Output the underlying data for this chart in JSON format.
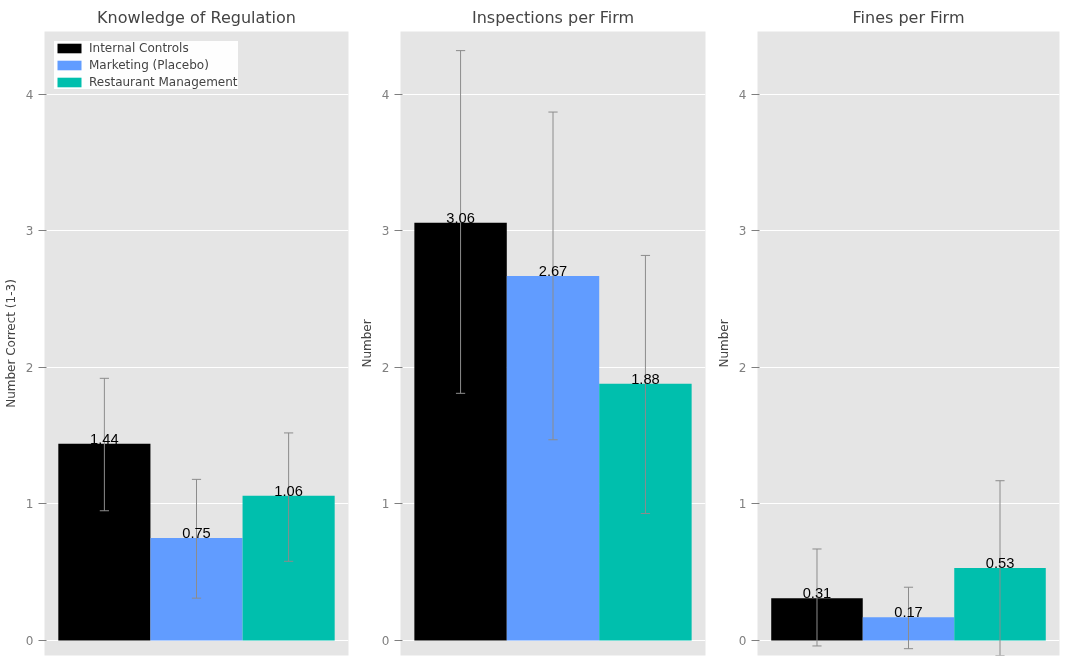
{
  "chart_data": [
    {
      "type": "bar",
      "title": "Knowledge of Regulation",
      "ylabel": "Number Correct (1-3)",
      "categories": [
        null
      ],
      "ylim": [
        -0.11,
        4.46
      ],
      "yticks": [
        0,
        1,
        2,
        3,
        4
      ],
      "grid": "y",
      "legend": "top left",
      "tick_labels": "y",
      "data_labels": true,
      "series": [
        {
          "name": "Internal Controls",
          "color": "#000000",
          "values": [
            1.44
          ],
          "errors": [
            [
              0.95,
              1.92
            ]
          ]
        },
        {
          "name": "Marketing (Placebo)",
          "color": "#619cff",
          "values": [
            0.75
          ],
          "errors": [
            [
              0.31,
              1.18
            ]
          ]
        },
        {
          "name": "Restaurant Management",
          "color": "#00bfad",
          "values": [
            1.06
          ],
          "errors": [
            [
              0.58,
              1.52
            ]
          ]
        }
      ]
    },
    {
      "type": "bar",
      "title": "Inspections per Firm",
      "ylabel": "Number",
      "categories": [
        null
      ],
      "ylim": [
        -0.11,
        4.46
      ],
      "yticks": [
        0,
        1,
        2,
        3,
        4
      ],
      "grid": "y",
      "tick_labels": "y",
      "data_labels": true,
      "series": [
        {
          "color": "#000000",
          "values": [
            3.06
          ],
          "errors": [
            [
              1.81,
              4.32
            ]
          ]
        },
        {
          "color": "#619cff",
          "values": [
            2.67
          ],
          "errors": [
            [
              1.47,
              3.87
            ]
          ]
        },
        {
          "color": "#00bfad",
          "values": [
            1.88
          ],
          "errors": [
            [
              0.93,
              2.82
            ]
          ]
        }
      ]
    },
    {
      "type": "bar",
      "title": "Fines per Firm",
      "ylabel": "Number",
      "categories": [
        null
      ],
      "ylim": [
        -0.11,
        4.46
      ],
      "yticks": [
        0,
        1,
        2,
        3,
        4
      ],
      "grid": "y",
      "tick_labels": "y",
      "data_labels": true,
      "series": [
        {
          "color": "#000000",
          "values": [
            0.31
          ],
          "errors": [
            [
              -0.04,
              0.67
            ]
          ]
        },
        {
          "color": "#619cff",
          "values": [
            0.17
          ],
          "errors": [
            [
              -0.06,
              0.39
            ]
          ]
        },
        {
          "color": "#00bfad",
          "values": [
            0.53
          ],
          "errors": [
            [
              -0.11,
              1.17
            ]
          ]
        }
      ]
    }
  ]
}
